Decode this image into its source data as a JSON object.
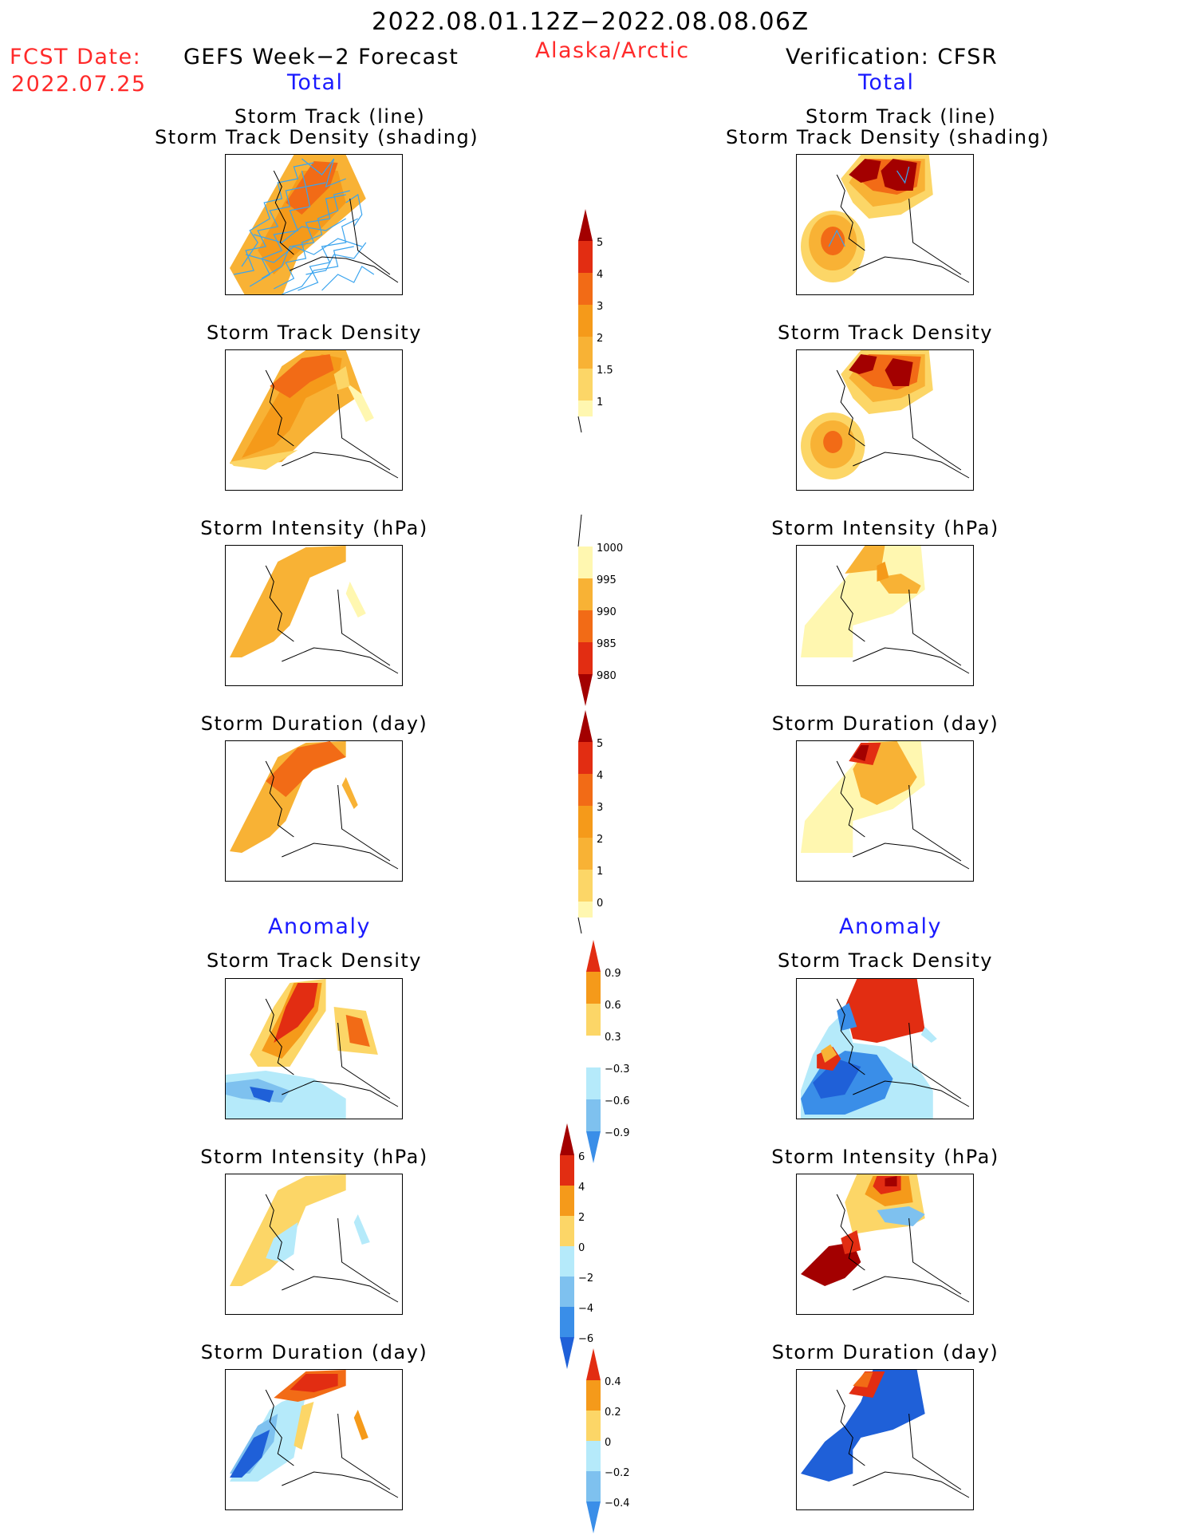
{
  "header": {
    "date_range": "2022.08.01.12Z−2022.08.08.06Z",
    "fcst_label": "FCST Date:",
    "fcst_date": "2022.07.25",
    "left_title": "GEFS Week−2 Forecast",
    "region": "Alaska/Arctic",
    "right_title": "Verification: CFSR",
    "total_left": "Total",
    "total_right": "Total",
    "anomaly_left": "Anomaly",
    "anomaly_right": "Anomaly"
  },
  "panels": {
    "storm_track_line": "Storm Track (line)",
    "storm_track_density_shading": "Storm Track Density (shading)",
    "storm_track_density": "Storm Track Density",
    "storm_intensity": "Storm Intensity (hPa)",
    "storm_duration": "Storm Duration (day)"
  },
  "colorbars": {
    "density": [
      "5",
      "4",
      "3",
      "2",
      "1.5",
      "1"
    ],
    "intensity": [
      "1000",
      "995",
      "990",
      "985",
      "980"
    ],
    "duration": [
      "5",
      "4",
      "3",
      "2",
      "1",
      "0"
    ],
    "anom_density": [
      "0.9",
      "0.6",
      "0.3",
      "−0.3",
      "−0.6",
      "−0.9"
    ],
    "anom_intensity": [
      "6",
      "4",
      "2",
      "0",
      "−2",
      "−4",
      "−6"
    ],
    "anom_duration": [
      "0.4",
      "0.2",
      "0",
      "−0.2",
      "−0.4"
    ]
  },
  "colors": {
    "lightyellow": "#fff7b0",
    "yellow": "#fcd667",
    "lightorange": "#f8b235",
    "orange": "#f59a1a",
    "darkorange": "#f26b16",
    "red": "#e22d12",
    "darkred": "#a30000",
    "lightblue": "#b5eafa",
    "midblue": "#7ec1ef",
    "blue": "#3a8ee8",
    "darkblue": "#1f60d8"
  }
}
